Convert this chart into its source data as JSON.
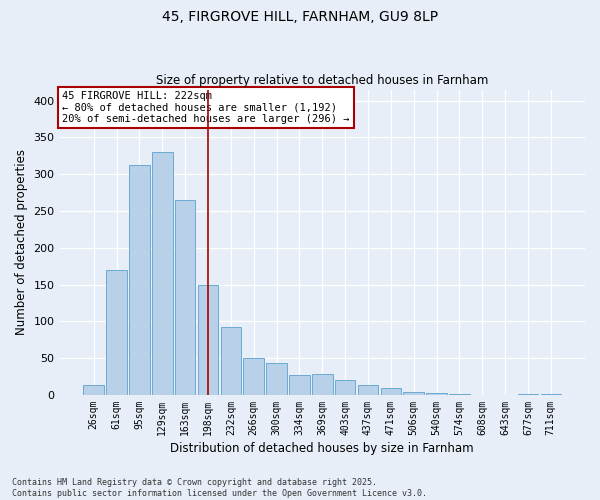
{
  "title1": "45, FIRGROVE HILL, FARNHAM, GU9 8LP",
  "title2": "Size of property relative to detached houses in Farnham",
  "xlabel": "Distribution of detached houses by size in Farnham",
  "ylabel": "Number of detached properties",
  "bar_labels": [
    "26sqm",
    "61sqm",
    "95sqm",
    "129sqm",
    "163sqm",
    "198sqm",
    "232sqm",
    "266sqm",
    "300sqm",
    "334sqm",
    "369sqm",
    "403sqm",
    "437sqm",
    "471sqm",
    "506sqm",
    "540sqm",
    "574sqm",
    "608sqm",
    "643sqm",
    "677sqm",
    "711sqm"
  ],
  "bar_values": [
    13,
    170,
    312,
    330,
    265,
    150,
    93,
    50,
    44,
    27,
    28,
    20,
    13,
    10,
    4,
    3,
    1,
    0,
    0,
    1,
    1
  ],
  "bar_color": "#b8d0e8",
  "bar_edge_color": "#6aaad4",
  "vline_x": 5.0,
  "vline_color": "#aa0000",
  "annotation_text": "45 FIRGROVE HILL: 222sqm\n← 80% of detached houses are smaller (1,192)\n20% of semi-detached houses are larger (296) →",
  "annotation_box_color": "#ffffff",
  "annotation_box_edge": "#aa0000",
  "ylim": [
    0,
    415
  ],
  "yticks": [
    0,
    50,
    100,
    150,
    200,
    250,
    300,
    350,
    400
  ],
  "footer": "Contains HM Land Registry data © Crown copyright and database right 2025.\nContains public sector information licensed under the Open Government Licence v3.0.",
  "bg_color": "#e8eef8",
  "plot_bg_color": "#e8eef8",
  "title_fontsize": 10,
  "subtitle_fontsize": 8.5
}
